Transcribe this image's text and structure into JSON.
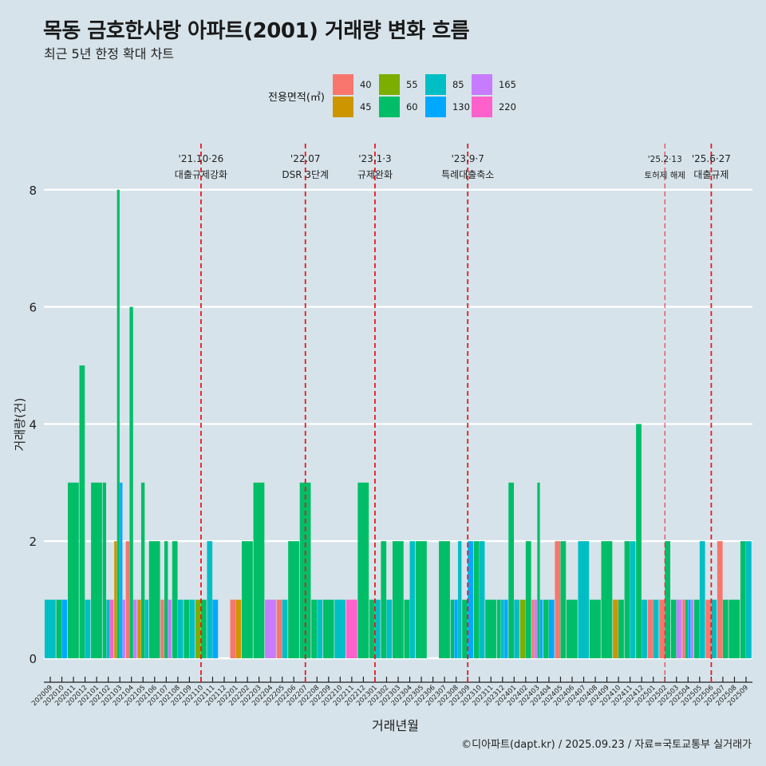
{
  "header": {
    "title": "목동 금호한사랑 아파트(2001) 거래량 변화 흐름",
    "subtitle": "최근 5년 한정 확대 차트"
  },
  "footer": {
    "credit": "©디아파트(dapt.kr) / 2025.09.23 / 자료=국토교통부 실거래가"
  },
  "chart_data": {
    "type": "bar",
    "title": "목동 금호한사랑 아파트(2001) 거래량 변화 흐름",
    "subtitle": "최근 5년 한정 확대 차트",
    "xlabel": "거래년월",
    "ylabel": "거래량(건)",
    "ylim": [
      0,
      8
    ],
    "yticks": [
      0,
      2,
      4,
      6,
      8
    ],
    "grid": true,
    "legend": {
      "title": "전용면적(㎡)",
      "placement": "top",
      "entries": [
        {
          "label": "40",
          "color": "#F8766D"
        },
        {
          "label": "45",
          "color": "#CD9600"
        },
        {
          "label": "55",
          "color": "#7CAE00"
        },
        {
          "label": "60",
          "color": "#00BE67"
        },
        {
          "label": "85",
          "color": "#00BFC4"
        },
        {
          "label": "130",
          "color": "#00A9FF"
        },
        {
          "label": "165",
          "color": "#C77CFF"
        },
        {
          "label": "220",
          "color": "#FF61CC"
        }
      ]
    },
    "categories": [
      "202009",
      "202010",
      "202011",
      "202012",
      "202101",
      "202102",
      "202103",
      "202104",
      "202105",
      "202106",
      "202107",
      "202108",
      "202109",
      "202110",
      "202111",
      "202112",
      "202201",
      "202202",
      "202203",
      "202204",
      "202205",
      "202206",
      "202207",
      "202208",
      "202209",
      "202210",
      "202211",
      "202212",
      "202301",
      "202302",
      "202303",
      "202304",
      "202305",
      "202306",
      "202307",
      "202308",
      "202309",
      "202310",
      "202311",
      "202312",
      "202401",
      "202402",
      "202403",
      "202404",
      "202405",
      "202406",
      "202407",
      "202408",
      "202409",
      "202410",
      "202411",
      "202412",
      "202501",
      "202502",
      "202503",
      "202504",
      "202505",
      "202506",
      "202507",
      "202508",
      "202509"
    ],
    "bars": [
      [
        [
          "85",
          1
        ]
      ],
      [
        [
          "60",
          1
        ],
        [
          "130",
          1
        ]
      ],
      [
        [
          "60",
          3
        ]
      ],
      [
        [
          "60",
          5
        ],
        [
          "85",
          1
        ]
      ],
      [
        [
          "60",
          3
        ]
      ],
      [
        [
          "60",
          3
        ],
        [
          "85",
          1
        ],
        [
          "220",
          1
        ]
      ],
      [
        [
          "45",
          2
        ],
        [
          "60",
          8
        ],
        [
          "130",
          3
        ],
        [
          "165",
          1
        ]
      ],
      [
        [
          "40",
          2
        ],
        [
          "60",
          6
        ],
        [
          "165",
          1
        ]
      ],
      [
        [
          "45",
          1
        ],
        [
          "60",
          3
        ],
        [
          "85",
          1
        ]
      ],
      [
        [
          "60",
          2
        ]
      ],
      [
        [
          "40",
          1
        ],
        [
          "60",
          2
        ],
        [
          "165",
          1
        ]
      ],
      [
        [
          "60",
          2
        ],
        [
          "85",
          1
        ]
      ],
      [
        [
          "60",
          1
        ],
        [
          "85",
          1
        ]
      ],
      [
        [
          "55",
          1
        ],
        [
          "60",
          1
        ]
      ],
      [
        [
          "85",
          2
        ],
        [
          "130",
          1
        ]
      ],
      [],
      [
        [
          "40",
          1
        ],
        [
          "45",
          1
        ]
      ],
      [
        [
          "60",
          2
        ]
      ],
      [
        [
          "60",
          3
        ]
      ],
      [
        [
          "165",
          1
        ]
      ],
      [
        [
          "40",
          1
        ],
        [
          "85",
          1
        ]
      ],
      [
        [
          "60",
          2
        ]
      ],
      [
        [
          "60",
          3
        ]
      ],
      [
        [
          "60",
          1
        ],
        [
          "85",
          1
        ]
      ],
      [
        [
          "60",
          1
        ]
      ],
      [
        [
          "85",
          1
        ]
      ],
      [
        [
          "220",
          1
        ]
      ],
      [
        [
          "60",
          3
        ]
      ],
      [
        [
          "60",
          1
        ],
        [
          "85",
          1
        ]
      ],
      [
        [
          "60",
          2
        ],
        [
          "85",
          1
        ]
      ],
      [
        [
          "60",
          2
        ]
      ],
      [
        [
          "60",
          1
        ],
        [
          "85",
          2
        ]
      ],
      [
        [
          "60",
          2
        ]
      ],
      [],
      [
        [
          "60",
          2
        ]
      ],
      [
        [
          "60",
          1
        ],
        [
          "130",
          1
        ],
        [
          "85",
          2
        ]
      ],
      [
        [
          "60",
          1
        ],
        [
          "130",
          2
        ]
      ],
      [
        [
          "60",
          2
        ],
        [
          "85",
          2
        ]
      ],
      [
        [
          "60",
          1
        ]
      ],
      [
        [
          "60",
          1
        ],
        [
          "85",
          1
        ],
        [
          "130",
          1
        ]
      ],
      [
        [
          "60",
          3
        ],
        [
          "85",
          1
        ]
      ],
      [
        [
          "55",
          1
        ],
        [
          "60",
          2
        ]
      ],
      [
        [
          "40",
          1
        ],
        [
          "165",
          1
        ],
        [
          "60",
          3
        ],
        [
          "130",
          1
        ]
      ],
      [
        [
          "60",
          1
        ],
        [
          "130",
          1
        ]
      ],
      [
        [
          "40",
          2
        ],
        [
          "60",
          2
        ]
      ],
      [
        [
          "60",
          1
        ]
      ],
      [
        [
          "85",
          2
        ]
      ],
      [
        [
          "60",
          1
        ]
      ],
      [
        [
          "60",
          2
        ]
      ],
      [
        [
          "45",
          1
        ],
        [
          "60",
          1
        ]
      ],
      [
        [
          "60",
          2
        ],
        [
          "85",
          2
        ]
      ],
      [
        [
          "60",
          4
        ],
        [
          "85",
          1
        ]
      ],
      [
        [
          "40",
          1
        ],
        [
          "85",
          1
        ]
      ],
      [
        [
          "40",
          1
        ],
        [
          "60",
          2
        ]
      ],
      [
        [
          "60",
          1
        ],
        [
          "165",
          1
        ]
      ],
      [
        [
          "40",
          1
        ],
        [
          "60",
          1
        ],
        [
          "130",
          1
        ],
        [
          "165",
          1
        ]
      ],
      [
        [
          "60",
          1
        ],
        [
          "85",
          2
        ]
      ],
      [
        [
          "40",
          1
        ],
        [
          "85",
          1
        ]
      ],
      [
        [
          "40",
          2
        ],
        [
          "60",
          1
        ]
      ],
      [
        [
          "60",
          1
        ]
      ],
      [
        [
          "60",
          2
        ],
        [
          "85",
          2
        ]
      ]
    ],
    "events": [
      {
        "label": "'21.10·26",
        "desc": "대출규제강화",
        "month": "202110",
        "style": "bold"
      },
      {
        "label": "'22.07",
        "desc": "DSR 3단계",
        "month": "202207",
        "style": "bold"
      },
      {
        "label": "'23.1·3",
        "desc": "규제완화",
        "month": "202301",
        "style": "bold"
      },
      {
        "label": "'23.9·7",
        "desc": "특례대출축소",
        "month": "202309",
        "style": "bold"
      },
      {
        "label": "'25.2·13",
        "desc": "토허제 해제",
        "month": "202502",
        "style": "thin"
      },
      {
        "label": "'25.6·27",
        "desc": "대출규제",
        "month": "202506",
        "style": "bold"
      }
    ]
  }
}
